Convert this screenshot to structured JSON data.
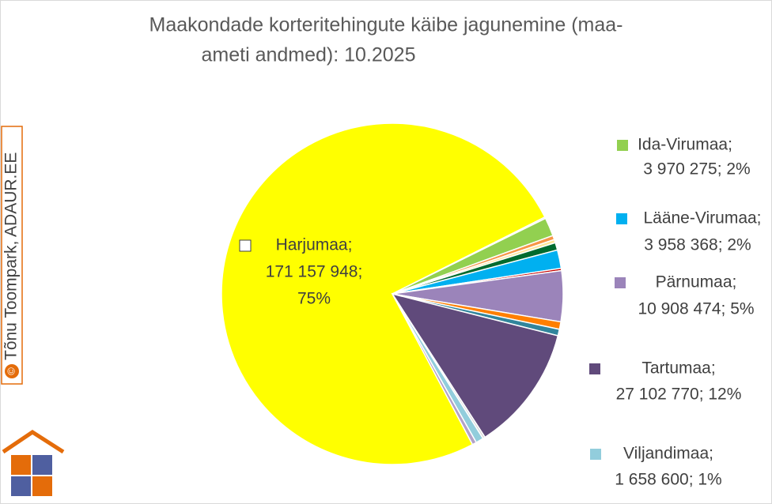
{
  "chart_data": {
    "type": "pie",
    "title": [
      "Maakondade korteritehingute käibe jagunemine (maa-",
      "ameti andmed): 10.2025"
    ],
    "watermark": "Tõnu Toompark, ADAUR.EE",
    "values": [
      171157948,
      300000,
      3970275,
      900000,
      700000,
      1600000,
      3958368,
      500000,
      10908474,
      1600000,
      1400000,
      27102770,
      500000,
      1658600,
      900000
    ],
    "colors": [
      "#ffff00",
      "#bfbfbf",
      "#92d050",
      "#f79646",
      "#ffe699",
      "#006b2e",
      "#00b0f0",
      "#c00000",
      "#9b84ba",
      "#ff7f00",
      "#31859c",
      "#604a7b",
      "#d9d9d9",
      "#92cddc",
      "#b3a2c7"
    ],
    "labels": [
      [
        "Harjumaa;",
        "171 157 948;",
        "75%"
      ],
      null,
      [
        "Ida-Virumaa;",
        "3 970 275; 2%"
      ],
      null,
      null,
      null,
      [
        "Lääne-Virumaa;",
        "3 958 368; 2%"
      ],
      null,
      [
        "Pärnumaa;",
        "10 908 474; 5%"
      ],
      null,
      null,
      [
        "Tartumaa;",
        "27 102 770; 12%"
      ],
      null,
      [
        "Viljandimaa;",
        "1 658 600; 1%"
      ],
      null
    ]
  }
}
